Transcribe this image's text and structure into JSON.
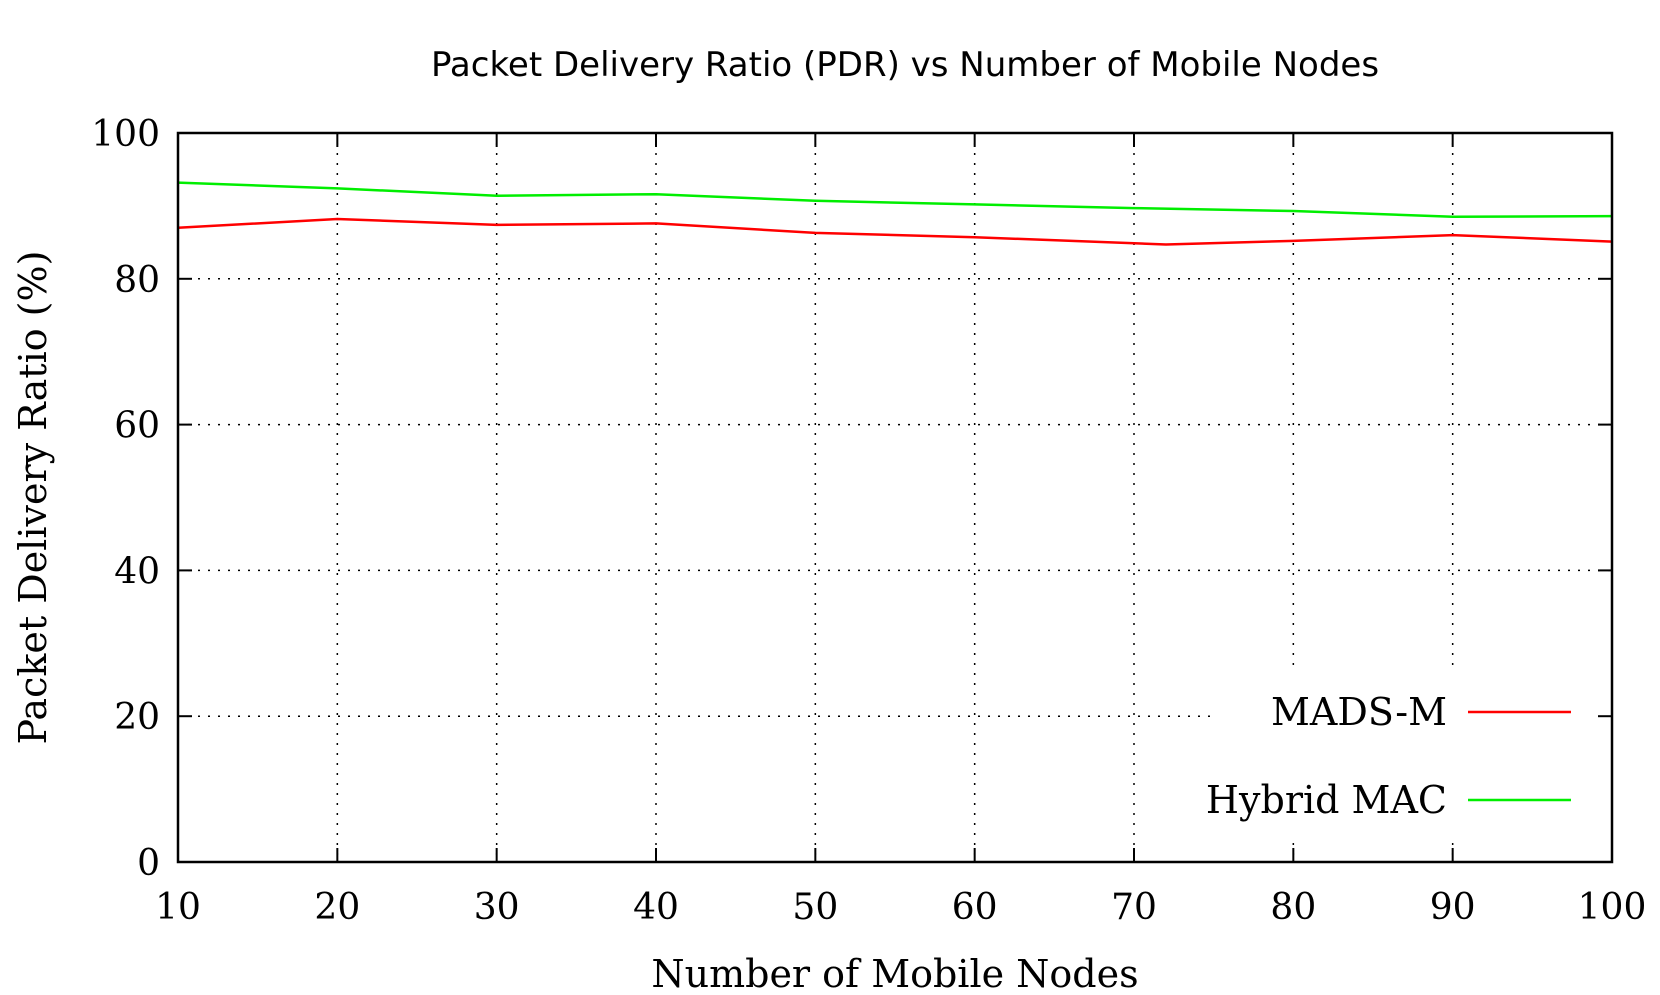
{
  "chart_data": {
    "type": "line",
    "title": "Packet Delivery Ratio (PDR) vs Number of Mobile Nodes",
    "xlabel": "Number of Mobile Nodes",
    "ylabel": "Packet Delivery Ratio (%)",
    "xlim": [
      10,
      100
    ],
    "ylim": [
      0,
      100
    ],
    "xticks": [
      "10",
      "20",
      "30",
      "40",
      "50",
      "60",
      "70",
      "80",
      "90",
      "100"
    ],
    "yticks": [
      "0",
      "20",
      "40",
      "60",
      "80",
      "100"
    ],
    "grid": true,
    "legend_position": "bottom-right",
    "series": [
      {
        "name": "MADS-M",
        "color": "#ff0000",
        "x": [
          10,
          20,
          30,
          40,
          50,
          60,
          72,
          80,
          90,
          100
        ],
        "y": [
          87.0,
          88.2,
          87.4,
          87.6,
          86.3,
          85.7,
          84.7,
          85.2,
          86.0,
          85.1
        ]
      },
      {
        "name": "Hybrid MAC",
        "color": "#00ee00",
        "x": [
          10,
          20,
          30,
          40,
          50,
          60,
          70,
          80,
          90,
          100
        ],
        "y": [
          93.2,
          92.4,
          91.4,
          91.6,
          90.7,
          90.2,
          89.7,
          89.3,
          88.5,
          88.6
        ]
      }
    ]
  }
}
